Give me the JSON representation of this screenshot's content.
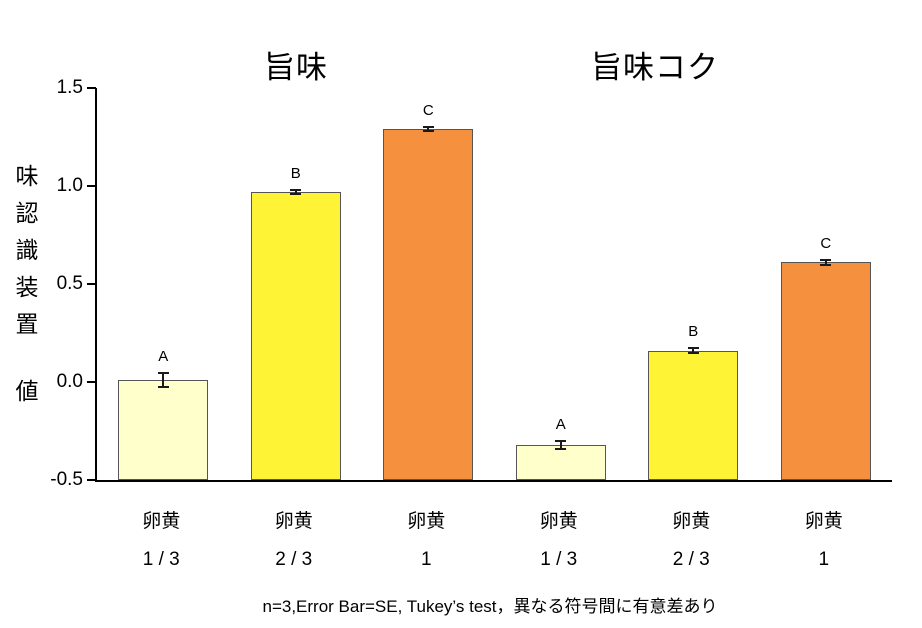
{
  "chart_data": {
    "type": "bar",
    "titles": [
      "旨味",
      "旨味コク"
    ],
    "ylabel": "味認識装置値",
    "ylabel_chars": [
      "味",
      "認",
      "識",
      "装",
      "置",
      "値"
    ],
    "ylim": [
      -0.5,
      1.5
    ],
    "ytick_labels": [
      "1.5",
      "1.0",
      "0.5",
      "0.0",
      "-0.5"
    ],
    "ytick_values": [
      1.5,
      1.0,
      0.5,
      0.0,
      -0.5
    ],
    "legend": "none",
    "grid": "off",
    "bar_colors": {
      "one_third": "#FFFFCC",
      "two_thirds": "#FFF335",
      "one": "#F5913E"
    },
    "groups": [
      {
        "title": "旨味",
        "bars": [
          {
            "label_line1": "卵黄",
            "label_line2": "1 / 3",
            "value": 0.01,
            "se": 0.035,
            "sig": "A",
            "color": "#FFFFCC"
          },
          {
            "label_line1": "卵黄",
            "label_line2": "2 / 3",
            "value": 0.97,
            "se": 0.012,
            "sig": "B",
            "color": "#FFF335"
          },
          {
            "label_line1": "卵黄",
            "label_line2": "1",
            "value": 1.29,
            "se": 0.01,
            "sig": "C",
            "color": "#F5913E"
          }
        ]
      },
      {
        "title": "旨味コク",
        "bars": [
          {
            "label_line1": "卵黄",
            "label_line2": "1 / 3",
            "value": -0.32,
            "se": 0.02,
            "sig": "A",
            "color": "#FFFFCC"
          },
          {
            "label_line1": "卵黄",
            "label_line2": "2 / 3",
            "value": 0.16,
            "se": 0.012,
            "sig": "B",
            "color": "#FFF335"
          },
          {
            "label_line1": "卵黄",
            "label_line2": "1",
            "value": 0.61,
            "se": 0.015,
            "sig": "C",
            "color": "#F5913E"
          }
        ]
      }
    ],
    "footnote": "n=3,Error Bar=SE, Tukey’s test，異なる符号間に有意差あり"
  }
}
